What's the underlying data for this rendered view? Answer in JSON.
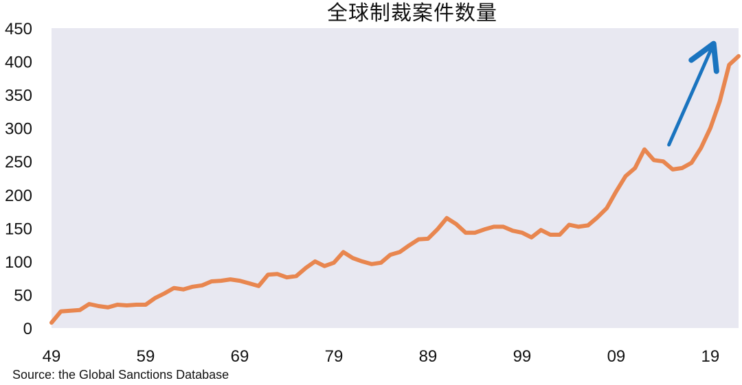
{
  "chart_data": {
    "type": "line",
    "title": "全球制裁案件数量",
    "xlabel": "",
    "ylabel": "",
    "source": "Source: the Global Sanctions Database",
    "xlim": [
      1949,
      2022
    ],
    "ylim": [
      0,
      450
    ],
    "x_tick_values": [
      1949,
      1959,
      1969,
      1979,
      1989,
      1999,
      2009,
      2019
    ],
    "x_tick_labels": [
      "49",
      "59",
      "69",
      "79",
      "89",
      "99",
      "09",
      "19"
    ],
    "y_ticks": [
      0,
      50,
      100,
      150,
      200,
      250,
      300,
      350,
      400,
      450
    ],
    "grid": false,
    "colors": {
      "plot_background": "#e8e8f1",
      "line": "#e8864f",
      "arrow": "#1a74bf"
    },
    "annotation": {
      "type": "arrow",
      "direction": "up",
      "from": [
        2014.6,
        275
      ],
      "to": [
        2019.2,
        422
      ]
    },
    "series": [
      {
        "x": [
          1949,
          1950,
          1951,
          1952,
          1953,
          1954,
          1955,
          1956,
          1957,
          1958,
          1959,
          1960,
          1961,
          1962,
          1963,
          1964,
          1965,
          1966,
          1967,
          1968,
          1969,
          1970,
          1971,
          1972,
          1973,
          1974,
          1975,
          1976,
          1977,
          1978,
          1979,
          1980,
          1981,
          1982,
          1983,
          1984,
          1985,
          1986,
          1987,
          1988,
          1989,
          1990,
          1991,
          1992,
          1993,
          1994,
          1995,
          1996,
          1997,
          1998,
          1999,
          2000,
          2001,
          2002,
          2003,
          2004,
          2005,
          2006,
          2007,
          2008,
          2009,
          2010,
          2011,
          2012,
          2013,
          2014,
          2015,
          2016,
          2017,
          2018,
          2019,
          2020,
          2021,
          2022
        ],
        "values": [
          8,
          25,
          26,
          27,
          36,
          33,
          31,
          35,
          34,
          35,
          35,
          45,
          52,
          60,
          58,
          62,
          64,
          70,
          71,
          73,
          71,
          67,
          63,
          80,
          81,
          76,
          78,
          90,
          100,
          93,
          98,
          114,
          105,
          100,
          96,
          98,
          110,
          114,
          124,
          133,
          134,
          148,
          165,
          156,
          143,
          143,
          148,
          152,
          152,
          146,
          143,
          136,
          147,
          140,
          140,
          155,
          152,
          154,
          166,
          180,
          205,
          228,
          240,
          268,
          252,
          250,
          238,
          240,
          248,
          270,
          300,
          340,
          395,
          408
        ]
      }
    ]
  }
}
